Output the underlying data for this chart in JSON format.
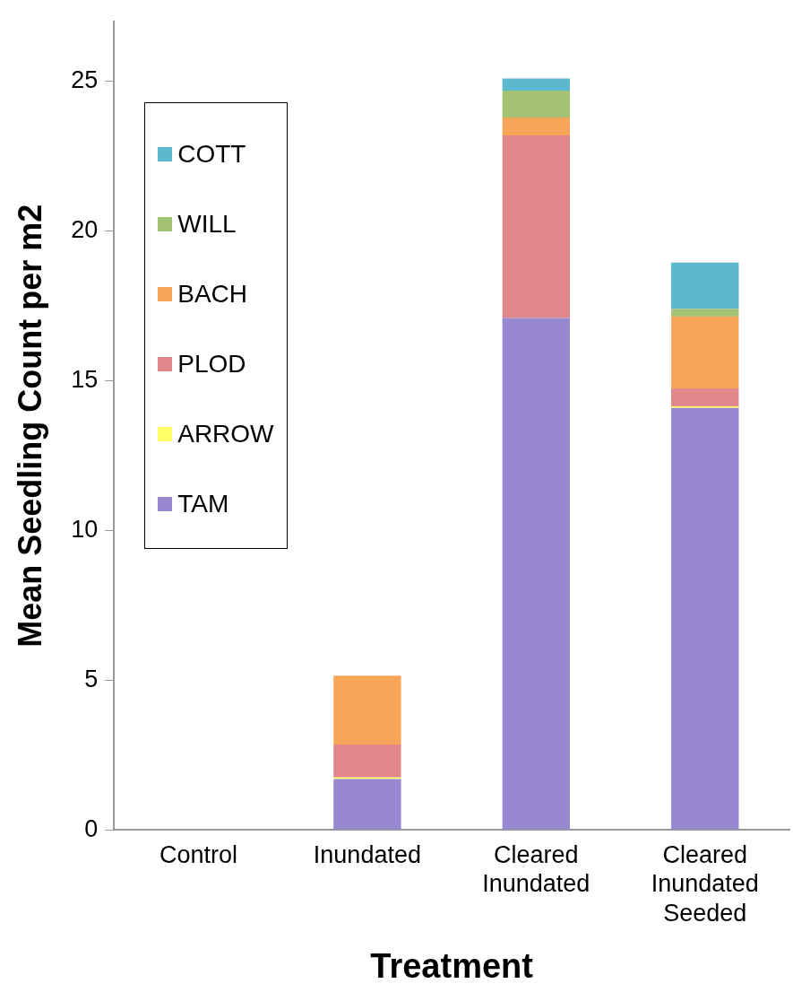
{
  "chart_data": {
    "type": "bar",
    "stacked": true,
    "xlabel": "Treatment",
    "ylabel": "Mean Seedling Count per m2",
    "categories": [
      "Control",
      "Inundated",
      "Cleared Inundated",
      "Cleared Inundated Seeded"
    ],
    "series": [
      {
        "name": "TAM",
        "color": "#9888cf",
        "values": [
          0,
          1.7,
          17.1,
          14.1
        ]
      },
      {
        "name": "ARROW",
        "color": "#ffff66",
        "values": [
          0,
          0.05,
          0,
          0.05
        ]
      },
      {
        "name": "PLOD",
        "color": "#e0878b",
        "values": [
          0,
          1.1,
          6.1,
          0.6
        ]
      },
      {
        "name": "BACH",
        "color": "#f8a55a",
        "values": [
          0,
          2.3,
          0.6,
          2.4
        ]
      },
      {
        "name": "WILL",
        "color": "#a3c274",
        "values": [
          0,
          0,
          0.9,
          0.25
        ]
      },
      {
        "name": "COTT",
        "color": "#5bb8cf",
        "values": [
          0,
          0,
          0.4,
          1.55
        ]
      }
    ],
    "ylim": [
      0,
      27
    ],
    "yticks": [
      0,
      5,
      10,
      15,
      20,
      25
    ],
    "grid": false,
    "legend": "top left"
  }
}
